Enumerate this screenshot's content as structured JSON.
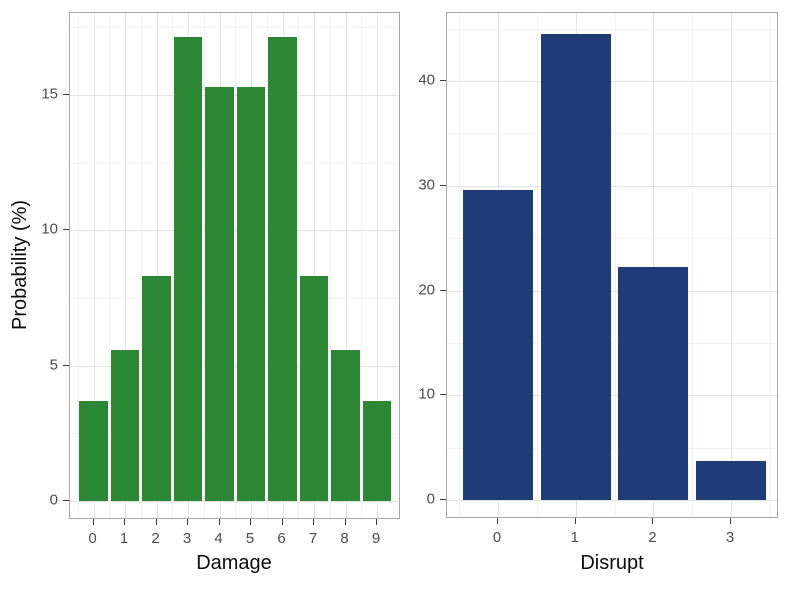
{
  "figure": {
    "y_axis_title": "Probability (%)"
  },
  "chart_data": [
    {
      "type": "bar",
      "name": "damage-distribution",
      "xlabel": "Damage",
      "ylabel": "Probability (%)",
      "categories": [
        "0",
        "1",
        "2",
        "3",
        "4",
        "5",
        "6",
        "7",
        "8",
        "9"
      ],
      "values": [
        3.7,
        5.56,
        8.33,
        17.13,
        15.28,
        15.28,
        17.13,
        8.33,
        5.56,
        3.7
      ],
      "bar_color": "#2b8734",
      "ylim": [
        0,
        18.0
      ],
      "yticks": [
        0,
        5,
        10,
        15
      ],
      "yticks_minor": [
        2.5,
        7.5,
        12.5,
        17.5
      ],
      "grid": "major+minor",
      "legend": "none"
    },
    {
      "type": "bar",
      "name": "disrupt-distribution",
      "xlabel": "Disrupt",
      "ylabel": "",
      "categories": [
        "0",
        "1",
        "2",
        "3"
      ],
      "values": [
        29.63,
        44.44,
        22.22,
        3.7
      ],
      "bar_color": "#1f3c78",
      "ylim": [
        0,
        46.5
      ],
      "yticks": [
        0,
        10,
        20,
        30,
        40
      ],
      "yticks_minor": [
        5,
        15,
        25,
        35,
        45
      ],
      "grid": "major+minor",
      "legend": "none"
    }
  ],
  "colors": {
    "bar_green": "#2b8734",
    "bar_blue": "#1f3c78",
    "panel_border": "#a9a9a9",
    "grid_major": "#e3e3e3",
    "grid_minor": "#f2f2f2",
    "tick_text": "#4d4d4d",
    "title_text": "#0d0d0d",
    "background": "#ffffff"
  }
}
